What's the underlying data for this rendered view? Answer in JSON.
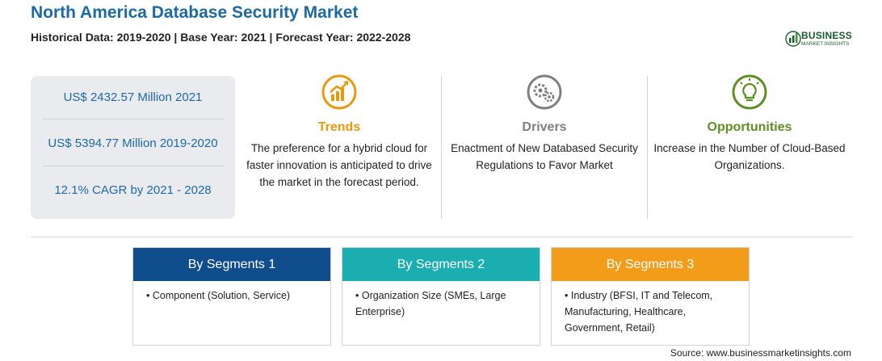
{
  "header": {
    "title": "North America Database Security Market",
    "subtitle": "Historical Data: 2019-2020 | Base Year: 2021 | Forecast Year: 2022-2028"
  },
  "logo": {
    "name": "BUSINESS",
    "tagline": "MARKET INSIGHTS"
  },
  "stats": [
    "US$ 2432.57 Million 2021",
    "US$ 5394.77 Million 2019-2020",
    "12.1% CAGR by 2021 - 2028"
  ],
  "cards": [
    {
      "heading": "Trends",
      "color": "#e89a0c",
      "icon": "trend-up-icon",
      "text": "The preference for a hybrid cloud for faster innovation is anticipated to drive the market in the forecast period."
    },
    {
      "heading": "Drivers",
      "color": "#7f7f7f",
      "icon": "gears-icon",
      "text": "Enactment of New Databased Security Regulations to Favor Market"
    },
    {
      "heading": "Opportunities",
      "color": "#5e8f22",
      "icon": "lightbulb-icon",
      "text": "Increase in the Number of Cloud-Based Organizations."
    }
  ],
  "segments": [
    {
      "title": "By Segments 1",
      "color": "#0f4d8c",
      "item": "• Component (Solution, Service)"
    },
    {
      "title": "By Segments 2",
      "color": "#1aaeb0",
      "item": "• Organization Size (SMEs, Large Enterprise)"
    },
    {
      "title": "By Segments 3",
      "color": "#f39c1a",
      "item": "• Industry (BFSI, IT and Telecom, Manufacturing, Healthcare, Government, Retail)"
    }
  ],
  "source": "Source: www.businessmarketinsights.com"
}
